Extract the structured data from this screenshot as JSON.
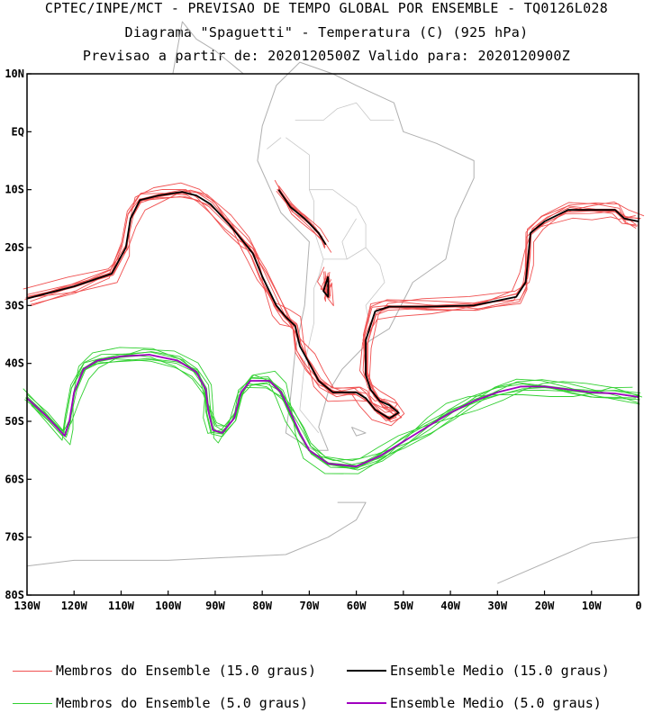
{
  "titles": {
    "line1": "CPTEC/INPE/MCT - PREVISAO DE TEMPO GLOBAL POR ENSEMBLE - TQ0126L028",
    "line2": "Diagrama \"Spaguetti\" - Temperatura (C) (925 hPa)",
    "line3": "Previsao a partir de: 2020120500Z  Valido para: 2020120900Z"
  },
  "axes": {
    "lat_ticks": [
      {
        "value": 10,
        "label": "10N"
      },
      {
        "value": 0,
        "label": "EQ"
      },
      {
        "value": -10,
        "label": "10S"
      },
      {
        "value": -20,
        "label": "20S"
      },
      {
        "value": -30,
        "label": "30S"
      },
      {
        "value": -40,
        "label": "40S"
      },
      {
        "value": -50,
        "label": "50S"
      },
      {
        "value": -60,
        "label": "60S"
      },
      {
        "value": -70,
        "label": "70S"
      },
      {
        "value": -80,
        "label": "80S"
      }
    ],
    "lon_ticks": [
      {
        "value": -130,
        "label": "130W"
      },
      {
        "value": -120,
        "label": "120W"
      },
      {
        "value": -110,
        "label": "110W"
      },
      {
        "value": -100,
        "label": "100W"
      },
      {
        "value": -90,
        "label": "90W"
      },
      {
        "value": -80,
        "label": "80W"
      },
      {
        "value": -70,
        "label": "70W"
      },
      {
        "value": -60,
        "label": "60W"
      },
      {
        "value": -50,
        "label": "50W"
      },
      {
        "value": -40,
        "label": "40W"
      },
      {
        "value": -30,
        "label": "30W"
      },
      {
        "value": -20,
        "label": "20W"
      },
      {
        "value": -10,
        "label": "10W"
      },
      {
        "value": 0,
        "label": "0"
      }
    ],
    "lon_range": [
      -130,
      0
    ],
    "lat_range": [
      -80,
      10
    ]
  },
  "legend": [
    {
      "label": "Membros do Ensemble (15.0 graus)",
      "color": "#f05050"
    },
    {
      "label": "Ensemble Medio (15.0 graus)",
      "color": "#000000"
    },
    {
      "label": "Membros do Ensemble (5.0 graus)",
      "color": "#30d030"
    },
    {
      "label": "Ensemble Medio (5.0 graus)",
      "color": "#a000c0"
    }
  ],
  "map_features": {
    "coastline_color": "#b0b0b0",
    "coastline": [
      [
        [
          -77,
          8
        ],
        [
          -80,
          1
        ],
        [
          -81,
          -5
        ],
        [
          -76,
          -14
        ],
        [
          -70,
          -19
        ],
        [
          -71,
          -30
        ],
        [
          -73,
          -38
        ],
        [
          -74,
          -46
        ],
        [
          -75,
          -52
        ],
        [
          -69,
          -55
        ],
        [
          -66,
          -55
        ],
        [
          -68,
          -51
        ],
        [
          -66,
          -45
        ],
        [
          -63,
          -41
        ],
        [
          -57,
          -36
        ],
        [
          -53,
          -34
        ],
        [
          -48,
          -26
        ],
        [
          -41,
          -22
        ],
        [
          -39,
          -15
        ],
        [
          -35,
          -8
        ],
        [
          -35,
          -5
        ],
        [
          -43,
          -2
        ],
        [
          -50,
          0
        ],
        [
          -52,
          5
        ],
        [
          -60,
          8
        ],
        [
          -65,
          10
        ],
        [
          -72,
          12
        ],
        [
          -77,
          8
        ]
      ],
      [
        [
          -84,
          10
        ],
        [
          -90,
          14
        ],
        [
          -94,
          16
        ],
        [
          -97,
          19
        ],
        [
          -99,
          10
        ]
      ],
      [
        [
          -64,
          -64
        ],
        [
          -58,
          -64
        ],
        [
          -60,
          -67
        ],
        [
          -66,
          -70
        ],
        [
          -75,
          -73
        ],
        [
          -100,
          -74
        ],
        [
          -120,
          -74
        ],
        [
          -130,
          -75
        ]
      ],
      [
        [
          -30,
          -78
        ],
        [
          -10,
          -71
        ],
        [
          0,
          -70
        ]
      ],
      [
        [
          -61,
          -51
        ],
        [
          -58,
          -52
        ],
        [
          -60,
          -52.5
        ],
        [
          -61,
          -51
        ]
      ]
    ],
    "borders": [
      [
        [
          -75,
          -1
        ],
        [
          -70,
          -4
        ],
        [
          -70,
          -10
        ],
        [
          -69,
          -12
        ],
        [
          -69,
          -17
        ],
        [
          -67,
          -22
        ],
        [
          -68,
          -25
        ],
        [
          -69,
          -27
        ],
        [
          -69,
          -33
        ],
        [
          -71,
          -40
        ],
        [
          -72,
          -48
        ],
        [
          -68,
          -52
        ]
      ],
      [
        [
          -73,
          2
        ],
        [
          -67,
          2
        ],
        [
          -64,
          4
        ],
        [
          -60,
          5
        ],
        [
          -57,
          2
        ],
        [
          -52,
          2
        ]
      ],
      [
        [
          -70,
          -10
        ],
        [
          -65,
          -10
        ],
        [
          -60,
          -13
        ],
        [
          -58,
          -16
        ],
        [
          -58,
          -20
        ],
        [
          -55,
          -23
        ],
        [
          -54,
          -26
        ],
        [
          -56,
          -28
        ],
        [
          -58,
          -30
        ],
        [
          -57,
          -34
        ]
      ],
      [
        [
          -62,
          -22
        ],
        [
          -63,
          -22
        ],
        [
          -67,
          -22
        ]
      ],
      [
        [
          -58,
          -20
        ],
        [
          -62,
          -22
        ],
        [
          -63,
          -19
        ],
        [
          -60,
          -15
        ]
      ],
      [
        [
          -79,
          -3
        ],
        [
          -76,
          -1
        ]
      ]
    ]
  },
  "chart_data": {
    "type": "line",
    "title": "Diagrama \"Spaguetti\" - Temperatura (C) (925 hPa)",
    "x_axis": "longitude (degrees, W negative)",
    "y_axis": "latitude (degrees, S negative)",
    "series": [
      {
        "name": "Ensemble Medio (15.0 graus)",
        "color": "#000000",
        "width": 1.8,
        "segments": [
          [
            [
              -130,
              -28.8
            ],
            [
              -120,
              -26.7
            ],
            [
              -112,
              -24.5
            ],
            [
              -109,
              -20
            ],
            [
              -108,
              -15
            ],
            [
              -106,
              -11.8
            ],
            [
              -102,
              -11
            ],
            [
              -97,
              -10.4
            ],
            [
              -94,
              -11
            ],
            [
              -91,
              -12.5
            ],
            [
              -87,
              -16
            ],
            [
              -84,
              -19
            ],
            [
              -82,
              -21
            ],
            [
              -80,
              -25
            ],
            [
              -77,
              -30
            ],
            [
              -75,
              -32
            ],
            [
              -73,
              -33.5
            ],
            [
              -72,
              -37
            ],
            [
              -70,
              -40
            ],
            [
              -68,
              -43
            ],
            [
              -65,
              -45
            ],
            [
              -60,
              -45
            ],
            [
              -58,
              -46
            ],
            [
              -56,
              -48
            ],
            [
              -53,
              -49.5
            ],
            [
              -51,
              -48.5
            ],
            [
              -53,
              -47.2
            ],
            [
              -55,
              -46.5
            ],
            [
              -57,
              -44.5
            ],
            [
              -58,
              -42
            ],
            [
              -58,
              -36
            ],
            [
              -56,
              -31
            ],
            [
              -53,
              -30.2
            ],
            [
              -45,
              -30.2
            ],
            [
              -35,
              -30
            ],
            [
              -26,
              -28.5
            ],
            [
              -24,
              -26
            ],
            [
              -23.5,
              -22
            ],
            [
              -23,
              -17.5
            ],
            [
              -20,
              -15.5
            ],
            [
              -15,
              -13.5
            ],
            [
              -10,
              -13.5
            ],
            [
              -5,
              -13.5
            ],
            [
              -3,
              -15
            ],
            [
              0,
              -15.5
            ]
          ],
          [
            [
              -76.5,
              -10
            ],
            [
              -74,
              -13
            ],
            [
              -71,
              -15
            ],
            [
              -68,
              -17.5
            ],
            [
              -66.5,
              -19.5
            ]
          ],
          [
            [
              -66,
              -25
            ],
            [
              -67,
              -27.5
            ],
            [
              -66,
              -28.5
            ],
            [
              -66,
              -25
            ]
          ]
        ]
      },
      {
        "name": "Ensemble Medio (5.0 graus)",
        "color": "#a000c0",
        "width": 1.8,
        "segments": [
          [
            [
              -130,
              -46
            ],
            [
              -126,
              -49
            ],
            [
              -122,
              -52.5
            ],
            [
              -121,
              -50
            ],
            [
              -120,
              -45
            ],
            [
              -118,
              -41
            ],
            [
              -115,
              -39.5
            ],
            [
              -110,
              -38.8
            ],
            [
              -104,
              -38.5
            ],
            [
              -98,
              -39.5
            ],
            [
              -94,
              -41.5
            ],
            [
              -92,
              -44.5
            ],
            [
              -91.5,
              -48
            ],
            [
              -90.5,
              -51.5
            ],
            [
              -88.5,
              -52
            ],
            [
              -86,
              -49.5
            ],
            [
              -84.5,
              -45
            ],
            [
              -82.5,
              -43
            ],
            [
              -78.5,
              -43
            ],
            [
              -76,
              -45
            ],
            [
              -74,
              -48.5
            ],
            [
              -72,
              -52
            ],
            [
              -70,
              -55
            ],
            [
              -66,
              -57.3
            ],
            [
              -60,
              -57.8
            ],
            [
              -55,
              -56
            ],
            [
              -50,
              -53.5
            ],
            [
              -45,
              -51
            ],
            [
              -40,
              -48.5
            ],
            [
              -35,
              -46.5
            ],
            [
              -30,
              -45
            ],
            [
              -25,
              -44
            ],
            [
              -20,
              -44
            ],
            [
              -15,
              -44.5
            ],
            [
              -10,
              -45
            ],
            [
              -5,
              -45.2
            ],
            [
              0,
              -45.8
            ]
          ]
        ]
      }
    ]
  }
}
